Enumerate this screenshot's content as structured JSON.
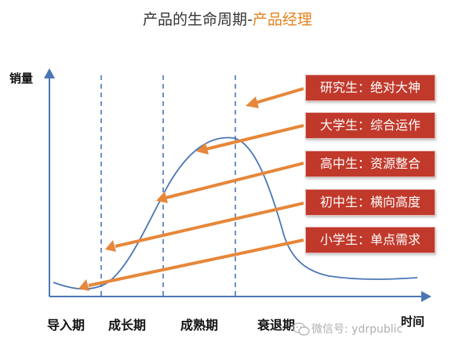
{
  "title": {
    "main": "产品的生命周期",
    "separator": "-",
    "subtitle": "产品经理"
  },
  "axes": {
    "y_label": "销量",
    "x_label": "时间"
  },
  "phases": [
    {
      "label": "导入期"
    },
    {
      "label": "成长期"
    },
    {
      "label": "成熟期"
    },
    {
      "label": "衰退期"
    }
  ],
  "stages": [
    {
      "label": "研究生：绝对大神"
    },
    {
      "label": "大学生：综合运作"
    },
    {
      "label": "高中生：资源整合"
    },
    {
      "label": "初中生：横向高度"
    },
    {
      "label": "小学生：单点需求"
    }
  ],
  "watermark": {
    "text": "微信号: ydrpublic"
  },
  "colors": {
    "curve": "#4a76b5",
    "axis": "#4a76b5",
    "divider": "#4a76b5",
    "arrow": "#e6873a",
    "stage_box": "#c0392b",
    "subtitle": "#e6821e",
    "watermark": "#b0b0b0"
  }
}
